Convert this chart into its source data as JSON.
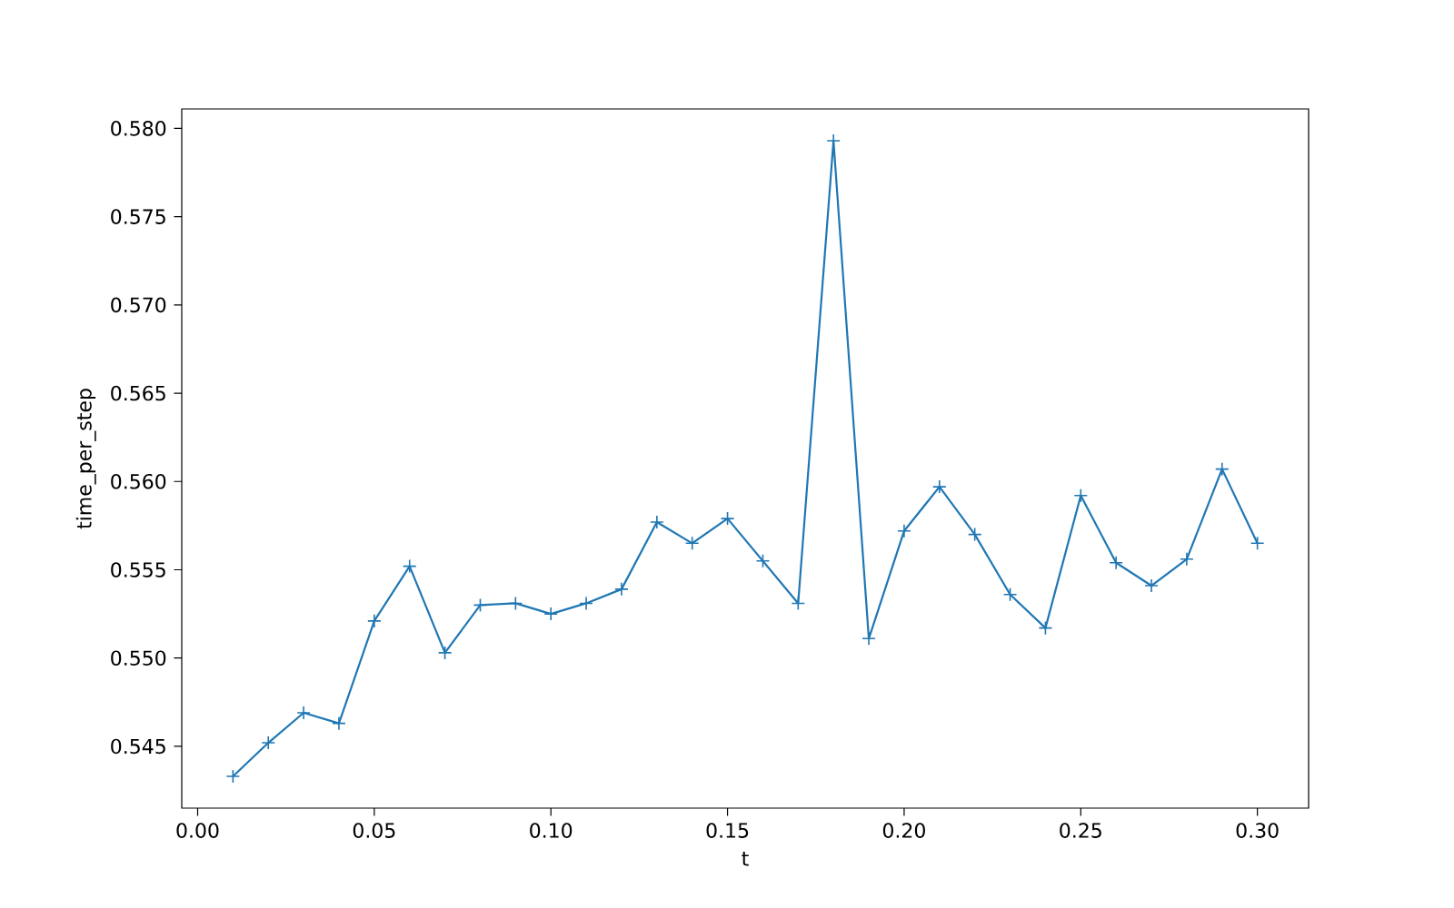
{
  "chart_data": {
    "type": "line",
    "xlabel": "t",
    "ylabel": "time_per_step",
    "x": [
      0.01,
      0.02,
      0.03,
      0.04,
      0.05,
      0.06,
      0.07,
      0.08,
      0.09,
      0.1,
      0.11,
      0.12,
      0.13,
      0.14,
      0.15,
      0.16,
      0.17,
      0.18,
      0.19,
      0.2,
      0.21,
      0.22,
      0.23,
      0.24,
      0.25,
      0.26,
      0.27,
      0.28,
      0.29,
      0.3
    ],
    "series": [
      {
        "color": "#1f77b4",
        "values": [
          0.5433,
          0.5452,
          0.5469,
          0.5463,
          0.5521,
          0.5552,
          0.5503,
          0.553,
          0.5531,
          0.5525,
          0.5531,
          0.5539,
          0.5577,
          0.5565,
          0.5579,
          0.5555,
          0.5531,
          0.5793,
          0.5511,
          0.5572,
          0.5597,
          0.557,
          0.5536,
          0.5517,
          0.5592,
          0.5554,
          0.5541,
          0.5556,
          0.5607,
          0.5565
        ]
      }
    ],
    "xlim": [
      -0.0045,
      0.3145
    ],
    "ylim": [
      0.5415,
      0.5811
    ],
    "xticks": [
      {
        "value": 0,
        "label": "0.00"
      },
      0.05,
      {
        "value": 0.1,
        "label": "0.10"
      },
      0.15,
      {
        "value": 0.2,
        "label": "0.20"
      },
      0.25,
      {
        "value": 0.3,
        "label": "0.30"
      }
    ],
    "yticks": [
      0.545,
      {
        "value": 0.55,
        "label": "0.550"
      },
      0.555,
      {
        "value": 0.56,
        "label": "0.560"
      },
      0.565,
      {
        "value": 0.57,
        "label": "0.570"
      },
      0.575,
      {
        "value": 0.58,
        "label": "0.580"
      }
    ],
    "marker": "cross",
    "line_style": "solid"
  }
}
